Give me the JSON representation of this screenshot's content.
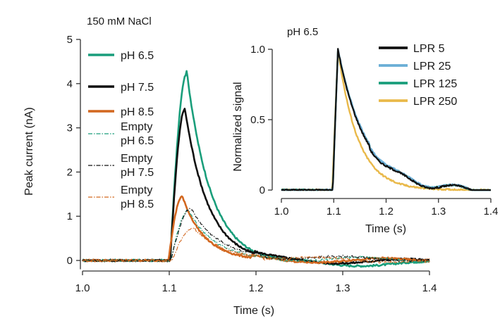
{
  "chart_data": [
    {
      "type": "line",
      "title": "150 mM NaCl",
      "xlabel": "Time (s)",
      "ylabel": "Peak current (nA)",
      "xlim": [
        1.0,
        1.4
      ],
      "ylim": [
        -0.2,
        5.0
      ],
      "xticks": [
        "1.0",
        "1.1",
        "1.2",
        "1.3",
        "1.4"
      ],
      "yticks": [
        "0",
        "1",
        "2",
        "3",
        "4",
        "5"
      ],
      "legend_position": "top-left",
      "series": [
        {
          "name": "pH 6.5",
          "color": "#1a9e7b",
          "style": "solid",
          "onset": 1.101,
          "peak": 4.22,
          "peak_time": 1.12,
          "decay": 0.028,
          "tail": -0.08
        },
        {
          "name": "pH 7.5",
          "color": "#111111",
          "style": "solid",
          "onset": 1.101,
          "peak": 3.42,
          "peak_time": 1.118,
          "decay": 0.027,
          "tail": -0.02
        },
        {
          "name": "pH 8.5",
          "color": "#d2671f",
          "style": "solid",
          "onset": 1.099,
          "peak": 1.45,
          "peak_time": 1.115,
          "decay": 0.026,
          "tail": 0.0
        },
        {
          "name": "Empty pH 6.5",
          "label_lines": [
            "Empty",
            "pH 6.5"
          ],
          "color": "#1a9e7b",
          "style": "dashdot",
          "onset": 1.102,
          "peak": 1.14,
          "peak_time": 1.122,
          "decay": 0.03,
          "tail": 0.02
        },
        {
          "name": "Empty pH 7.5",
          "label_lines": [
            "Empty",
            "pH 7.5"
          ],
          "color": "#111111",
          "style": "dashdot",
          "onset": 1.102,
          "peak": 1.18,
          "peak_time": 1.125,
          "decay": 0.032,
          "tail": 0.04
        },
        {
          "name": "Empty pH 8.5",
          "label_lines": [
            "Empty",
            "pH 8.5"
          ],
          "color": "#d2671f",
          "style": "dashdot",
          "onset": 1.103,
          "peak": 0.74,
          "peak_time": 1.128,
          "decay": 0.034,
          "tail": 0.01
        }
      ]
    },
    {
      "type": "line",
      "title": "pH 6.5",
      "xlabel": "Time (s)",
      "ylabel": "Normalized signal",
      "xlim": [
        1.0,
        1.4
      ],
      "ylim": [
        0.0,
        1.0
      ],
      "xticks": [
        "1.0",
        "1.1",
        "1.2",
        "1.3",
        "1.4"
      ],
      "yticks": [
        "0",
        "0.5",
        "1.0"
      ],
      "legend_position": "top-right",
      "series": [
        {
          "name": "LPR 5",
          "color": "#111111",
          "onset": 1.098,
          "peak": 1.0,
          "peak_time": 1.108,
          "decay": 0.052,
          "tail": 0.0
        },
        {
          "name": "LPR 25",
          "color": "#6aaed6",
          "onset": 1.098,
          "peak": 1.0,
          "peak_time": 1.108,
          "decay": 0.054,
          "tail": 0.0
        },
        {
          "name": "LPR 125",
          "color": "#1a9e7b",
          "onset": 1.098,
          "peak": 1.0,
          "peak_time": 1.108,
          "decay": 0.053,
          "tail": 0.0
        },
        {
          "name": "LPR 250",
          "color": "#e9b94a",
          "onset": 1.097,
          "peak": 1.0,
          "peak_time": 1.108,
          "decay": 0.038,
          "tail": 0.0
        }
      ]
    }
  ]
}
